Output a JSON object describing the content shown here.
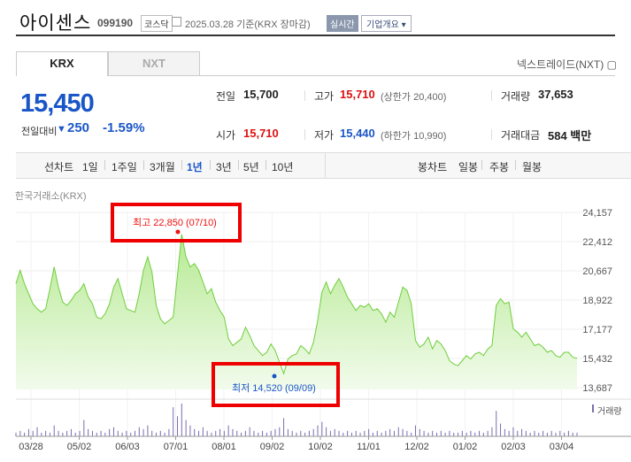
{
  "header": {
    "title": "아이센스",
    "code": "099190",
    "market": "코스닥",
    "date_info": "2025.03.28  기준(KRX 장마감)",
    "live_badge": "실시간",
    "company_info": "기업개요 ▾"
  },
  "tabs": [
    {
      "label": "KRX",
      "active": true
    },
    {
      "label": "NXT",
      "active": false
    }
  ],
  "nxt_link": "넥스트레이드(NXT) ▢",
  "price": {
    "current": "15,450",
    "change_label": "전일대비",
    "change_arrow": "▼",
    "change_amount": "250",
    "change_pct": "-1.59%"
  },
  "stats": {
    "prev_label": "전일",
    "prev_value": "15,700",
    "high_label": "고가",
    "high_value": "15,710",
    "high_limit": "(상한가 20,400)",
    "volume_label": "거래량",
    "volume_value": "37,653",
    "open_label": "시가",
    "open_value": "15,710",
    "low_label": "저가",
    "low_value": "15,440",
    "low_limit": "(하한가 10,990)",
    "amount_label": "거래대금",
    "amount_value": "584 백만"
  },
  "periods": {
    "line_label": "선차트",
    "line_items": [
      "1일",
      "1주일",
      "3개월",
      "1년",
      "3년",
      "5년",
      "10년"
    ],
    "selected": "1년",
    "candle_label": "봉차트",
    "candle_items": [
      "일봉",
      "주봉",
      "월봉"
    ]
  },
  "chart_source": "한국거래소(KRX)",
  "chart_data": {
    "type": "area",
    "x_labels": [
      "03/28",
      "05/02",
      "06/03",
      "07/01",
      "08/01",
      "09/02",
      "10/02",
      "11/01",
      "12/02",
      "01/02",
      "02/03",
      "03/04"
    ],
    "y_ticks": [
      "24,157",
      "22,412",
      "20,667",
      "18,922",
      "17,177",
      "15,432",
      "13,687"
    ],
    "ylim": [
      13687,
      24157
    ],
    "series_price": [
      19900,
      20700,
      19900,
      19300,
      18700,
      18400,
      18200,
      18400,
      19600,
      20900,
      19700,
      18800,
      18600,
      18900,
      19300,
      19500,
      19900,
      19100,
      18700,
      17900,
      17800,
      18100,
      18700,
      19700,
      20200,
      19300,
      18400,
      18300,
      18200,
      19300,
      20700,
      21500,
      20600,
      18600,
      17800,
      17500,
      17700,
      17900,
      20400,
      22850,
      21500,
      20900,
      21100,
      20700,
      20000,
      19300,
      19600,
      18800,
      18300,
      17900,
      16600,
      16200,
      16400,
      16600,
      17300,
      16800,
      16200,
      15900,
      15600,
      15800,
      16300,
      15900,
      15200,
      14520,
      15400,
      15600,
      15700,
      16200,
      16000,
      15700,
      16400,
      17700,
      19400,
      20000,
      19300,
      19800,
      20200,
      19700,
      19100,
      18700,
      18300,
      18600,
      18500,
      18700,
      18300,
      18400,
      18100,
      17600,
      18200,
      17900,
      18800,
      19700,
      19500,
      18700,
      16500,
      16100,
      16300,
      16700,
      16000,
      16500,
      16300,
      15900,
      15300,
      15100,
      15000,
      15300,
      15600,
      15400,
      15700,
      15800,
      15600,
      16000,
      16200,
      18600,
      19000,
      18700,
      18800,
      17200,
      17000,
      16700,
      17000,
      16600,
      16200,
      16300,
      16100,
      15800,
      15900,
      15600,
      15500,
      15800,
      15800,
      15500,
      15450
    ],
    "series_volume": [
      2,
      3,
      2,
      4,
      3,
      5,
      2,
      3,
      2,
      6,
      3,
      2,
      3,
      4,
      2,
      3,
      9,
      4,
      3,
      2,
      3,
      2,
      4,
      5,
      3,
      2,
      3,
      2,
      3,
      5,
      4,
      6,
      3,
      2,
      3,
      2,
      4,
      16,
      11,
      18,
      9,
      6,
      4,
      3,
      5,
      3,
      2,
      3,
      4,
      3,
      6,
      4,
      3,
      2,
      3,
      5,
      3,
      2,
      3,
      2,
      3,
      4,
      5,
      10,
      4,
      3,
      2,
      3,
      2,
      3,
      4,
      6,
      8,
      5,
      3,
      4,
      3,
      2,
      3,
      2,
      3,
      2,
      3,
      4,
      2,
      3,
      2,
      3,
      4,
      3,
      5,
      4,
      3,
      2,
      6,
      4,
      3,
      2,
      3,
      2,
      3,
      2,
      3,
      2,
      2,
      3,
      2,
      3,
      2,
      3,
      2,
      3,
      5,
      14,
      7,
      4,
      3,
      5,
      3,
      4,
      3,
      2,
      3,
      2,
      3,
      2,
      3,
      2,
      3,
      2,
      3,
      2,
      2
    ],
    "high": {
      "label": "최고 22,850 (07/10)",
      "value": 22850
    },
    "low": {
      "label": "최저 14,520 (09/09)",
      "value": 14520
    },
    "volume_legend": "거래량",
    "colors": {
      "line": "#6fce3c",
      "fill_top": "#b6ea93",
      "fill_bottom": "#f2fbec",
      "high": "#e11",
      "low": "#1a56c7",
      "volume": "#7b6cb0",
      "callout_border": "#e00"
    }
  }
}
